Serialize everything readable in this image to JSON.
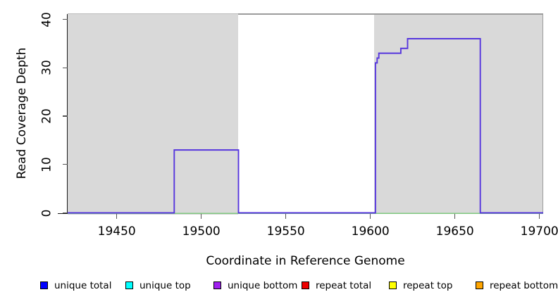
{
  "chart_data": {
    "type": "line",
    "line_style": "step",
    "title": "",
    "xlabel": "Coordinate in Reference Genome",
    "ylabel": "Read Coverage Depth",
    "xlim": [
      19421,
      19703
    ],
    "ylim": [
      0,
      41
    ],
    "grid": false,
    "x_ticks": [
      19450,
      19500,
      19550,
      19600,
      19650,
      19700
    ],
    "y_ticks": [
      0,
      10,
      20,
      30,
      40
    ],
    "background_highlight_regions": [
      {
        "start": 19421,
        "end": 19522,
        "color": "#d9d9d9"
      },
      {
        "start": 19602,
        "end": 19703,
        "color": "#d9d9d9"
      }
    ],
    "series": [
      {
        "name": "coverage-depth-step-line",
        "color": "#5636dd",
        "segments": [
          {
            "start": 19421,
            "end": 19484,
            "depth": 0
          },
          {
            "start": 19484,
            "end": 19522,
            "depth": 13
          },
          {
            "start": 19522,
            "end": 19603,
            "depth": 0
          },
          {
            "start": 19603,
            "end": 19604,
            "depth": 31
          },
          {
            "start": 19604,
            "end": 19605,
            "depth": 32
          },
          {
            "start": 19605,
            "end": 19618,
            "depth": 33
          },
          {
            "start": 19618,
            "end": 19622,
            "depth": 34
          },
          {
            "start": 19622,
            "end": 19665,
            "depth": 36
          },
          {
            "start": 19665,
            "end": 19703,
            "depth": 0
          }
        ]
      },
      {
        "name": "zero-baseline-line",
        "color": "#7ec87e",
        "depth": 0,
        "start": 19421,
        "end": 19703
      }
    ],
    "legend_position": "bottom",
    "legend": [
      {
        "label": "unique total",
        "color": "#0000ff"
      },
      {
        "label": "unique top",
        "color": "#00ffff"
      },
      {
        "label": "unique bottom",
        "color": "#a020f0"
      },
      {
        "label": "repeat total",
        "color": "#ee0000"
      },
      {
        "label": "repeat top",
        "color": "#ffff00"
      },
      {
        "label": "repeat bottom",
        "color": "#ffa500"
      }
    ]
  }
}
